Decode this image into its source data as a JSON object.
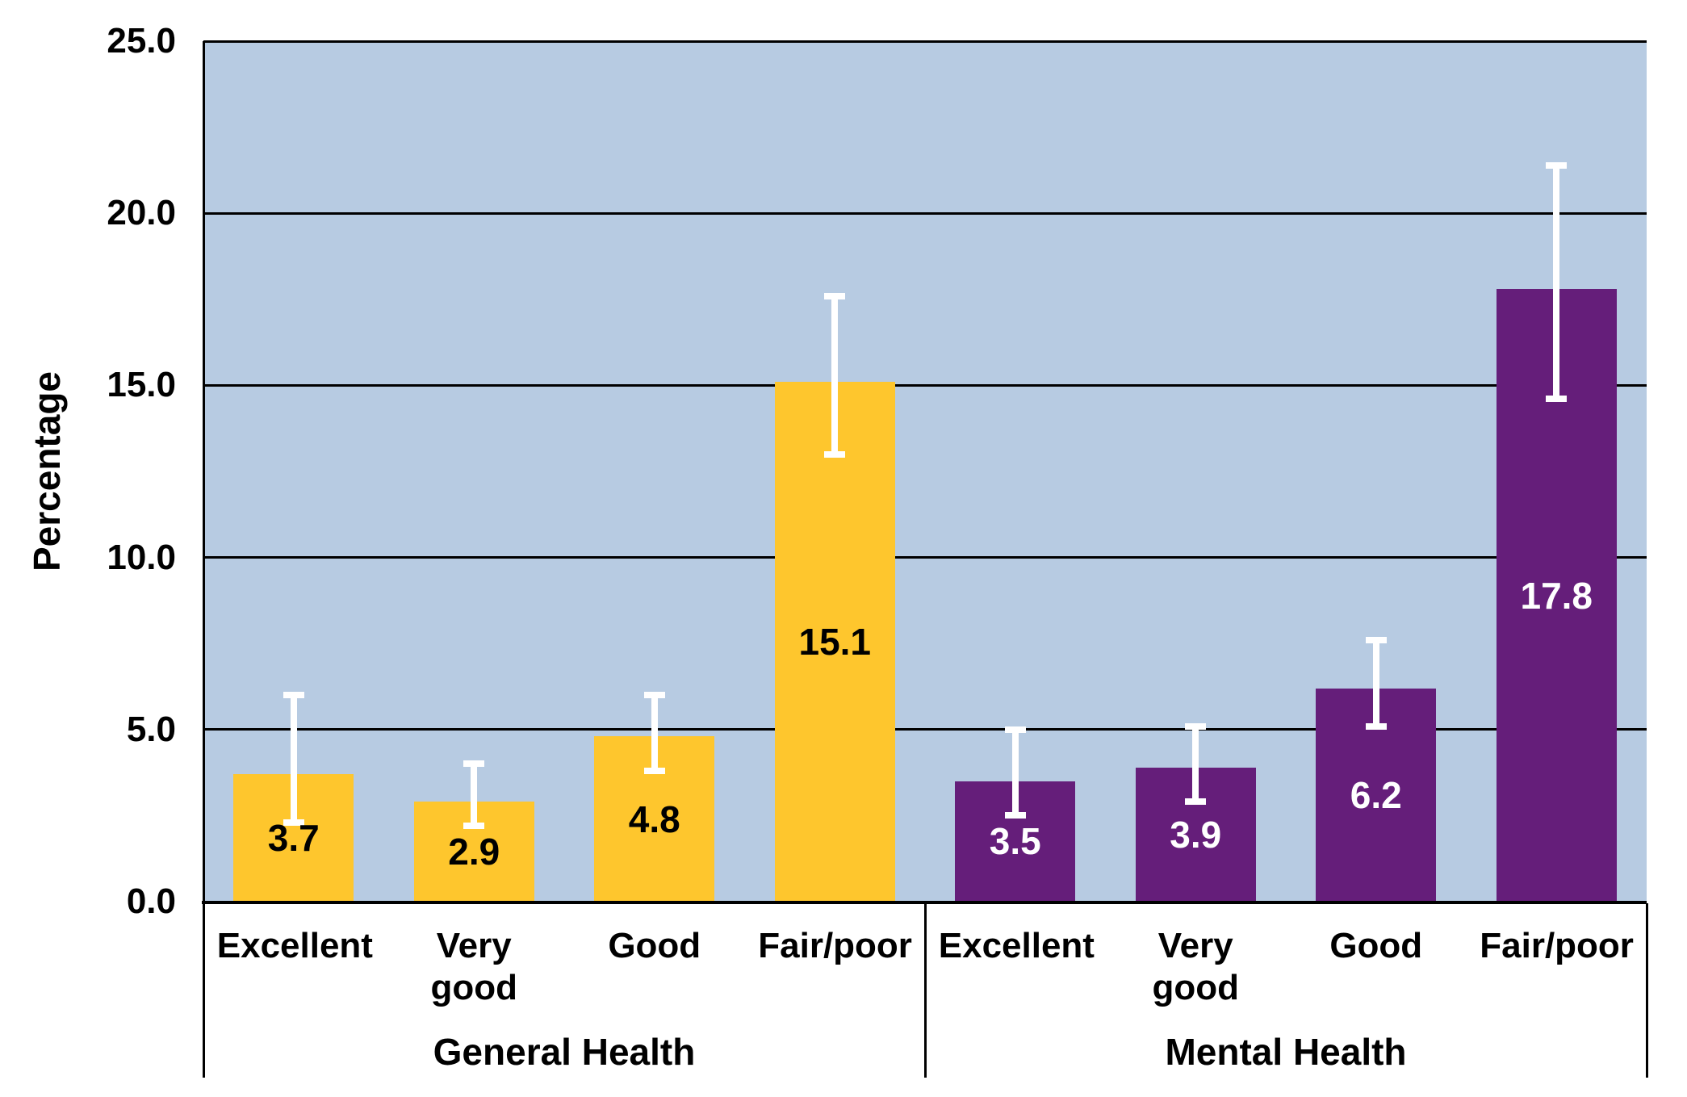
{
  "chart_data": {
    "type": "bar",
    "title": "",
    "xlabel": "",
    "ylabel": "Percentage",
    "ylim": [
      0,
      25
    ],
    "ytick_step": 5,
    "yticks": [
      0,
      5,
      10,
      15,
      20,
      25
    ],
    "ytick_labels": [
      "0.0",
      "5.0",
      "10.0",
      "15.0",
      "20.0",
      "25.0"
    ],
    "grid": true,
    "legend": "none",
    "colors": {
      "plot_background": "#B7CBE2",
      "gridline": "#000000",
      "axis_line": "#000000",
      "error_bar": "#FFFFFF",
      "general_health_bar": "#FEC62D",
      "mental_health_bar": "#651E7A"
    },
    "groups": [
      {
        "label": "General Health",
        "bar_color": "#FEC62D",
        "value_label_color": "#000000",
        "points": [
          {
            "category": "Excellent",
            "value": 3.7,
            "ci_low": 2.3,
            "ci_high": 6.0,
            "value_label": "3.7"
          },
          {
            "category": "Very good",
            "value": 2.9,
            "ci_low": 2.2,
            "ci_high": 4.0,
            "value_label": "2.9"
          },
          {
            "category": "Good",
            "value": 4.8,
            "ci_low": 3.8,
            "ci_high": 6.0,
            "value_label": "4.8"
          },
          {
            "category": "Fair/poor",
            "value": 15.1,
            "ci_low": 13.0,
            "ci_high": 17.6,
            "value_label": "15.1"
          }
        ]
      },
      {
        "label": "Mental Health",
        "bar_color": "#651E7A",
        "value_label_color": "#FFFFFF",
        "points": [
          {
            "category": "Excellent",
            "value": 3.5,
            "ci_low": 2.5,
            "ci_high": 5.0,
            "value_label": "3.5"
          },
          {
            "category": "Very good",
            "value": 3.9,
            "ci_low": 2.9,
            "ci_high": 5.1,
            "value_label": "3.9"
          },
          {
            "category": "Good",
            "value": 6.2,
            "ci_low": 5.1,
            "ci_high": 7.6,
            "value_label": "6.2"
          },
          {
            "category": "Fair/poor",
            "value": 17.8,
            "ci_low": 14.6,
            "ci_high": 21.4,
            "value_label": "17.8"
          }
        ]
      }
    ]
  }
}
